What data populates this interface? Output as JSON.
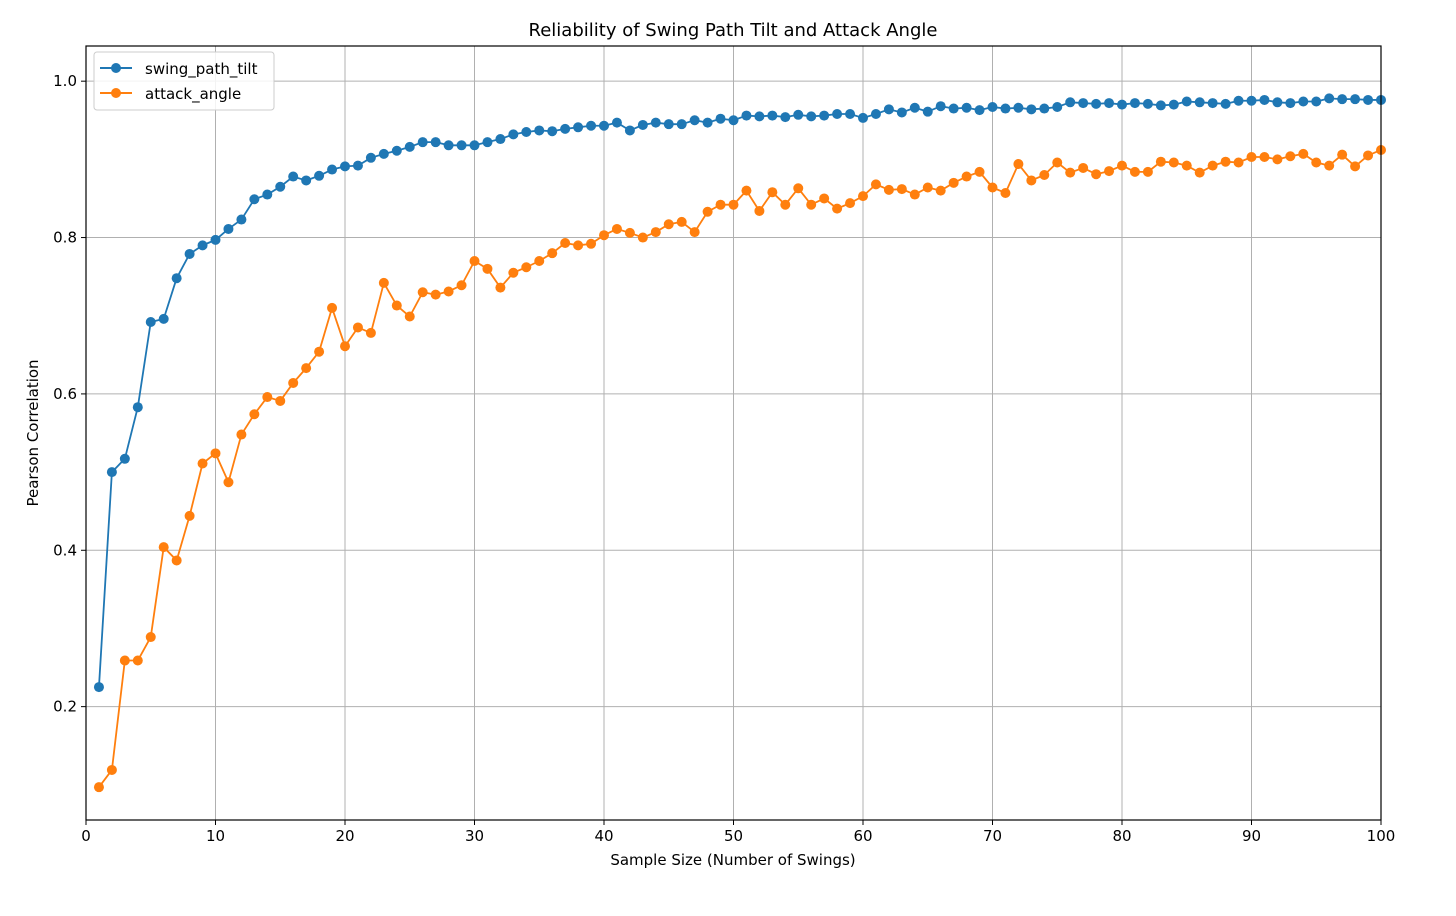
{
  "chart_data": {
    "type": "line",
    "title": "Reliability of Swing Path Tilt and Attack Angle",
    "xlabel": "Sample Size (Number of Swings)",
    "ylabel": "Pearson Correlation",
    "xlim": [
      0,
      100
    ],
    "ylim": [
      0.055,
      1.045
    ],
    "xticks": [
      0,
      10,
      20,
      30,
      40,
      50,
      60,
      70,
      80,
      90,
      100
    ],
    "yticks": [
      0.2,
      0.4,
      0.6,
      0.8,
      1.0
    ],
    "xtick_labels": [
      "0",
      "10",
      "20",
      "30",
      "40",
      "50",
      "60",
      "70",
      "80",
      "90",
      "100"
    ],
    "ytick_labels": [
      "0.2",
      "0.4",
      "0.6",
      "0.8",
      "1.0"
    ],
    "grid": true,
    "legend_position": "top-left",
    "series": [
      {
        "name": "swing_path_tilt",
        "color": "#1f77b4",
        "marker": "circle",
        "values": [
          0.225,
          0.5,
          0.517,
          0.583,
          0.692,
          0.696,
          0.748,
          0.779,
          0.79,
          0.797,
          0.811,
          0.823,
          0.849,
          0.855,
          0.865,
          0.878,
          0.873,
          0.879,
          0.887,
          0.891,
          0.892,
          0.902,
          0.907,
          0.911,
          0.916,
          0.922,
          0.922,
          0.918,
          0.918,
          0.918,
          0.922,
          0.926,
          0.932,
          0.935,
          0.937,
          0.936,
          0.939,
          0.941,
          0.943,
          0.943,
          0.947,
          0.937,
          0.944,
          0.947,
          0.945,
          0.945,
          0.95,
          0.947,
          0.952,
          0.95,
          0.956,
          0.955,
          0.956,
          0.954,
          0.957,
          0.955,
          0.956,
          0.958,
          0.958,
          0.953,
          0.958,
          0.964,
          0.96,
          0.966,
          0.961,
          0.968,
          0.965,
          0.966,
          0.963,
          0.967,
          0.965,
          0.966,
          0.964,
          0.965,
          0.967,
          0.973,
          0.972,
          0.971,
          0.972,
          0.97,
          0.972,
          0.971,
          0.969,
          0.97,
          0.974,
          0.973,
          0.972,
          0.971,
          0.975,
          0.975,
          0.976,
          0.973,
          0.972,
          0.974,
          0.974,
          0.978,
          0.977,
          0.977,
          0.976,
          0.976
        ]
      },
      {
        "name": "attack_angle",
        "color": "#ff7f0e",
        "marker": "circle",
        "values": [
          0.097,
          0.119,
          0.259,
          0.259,
          0.289,
          0.404,
          0.387,
          0.444,
          0.511,
          0.524,
          0.487,
          0.548,
          0.574,
          0.596,
          0.591,
          0.614,
          0.633,
          0.654,
          0.71,
          0.661,
          0.685,
          0.678,
          0.742,
          0.713,
          0.699,
          0.73,
          0.727,
          0.731,
          0.739,
          0.77,
          0.76,
          0.736,
          0.755,
          0.762,
          0.77,
          0.78,
          0.793,
          0.79,
          0.792,
          0.803,
          0.811,
          0.806,
          0.8,
          0.807,
          0.817,
          0.82,
          0.807,
          0.833,
          0.842,
          0.842,
          0.86,
          0.834,
          0.858,
          0.842,
          0.863,
          0.842,
          0.85,
          0.837,
          0.844,
          0.853,
          0.868,
          0.861,
          0.862,
          0.855,
          0.864,
          0.86,
          0.87,
          0.878,
          0.884,
          0.864,
          0.857,
          0.894,
          0.873,
          0.88,
          0.896,
          0.883,
          0.889,
          0.881,
          0.885,
          0.892,
          0.884,
          0.884,
          0.897,
          0.896,
          0.892,
          0.883,
          0.892,
          0.897,
          0.896,
          0.903,
          0.903,
          0.9,
          0.904,
          0.907,
          0.896,
          0.892,
          0.906,
          0.891,
          0.905,
          0.912
        ]
      }
    ]
  }
}
